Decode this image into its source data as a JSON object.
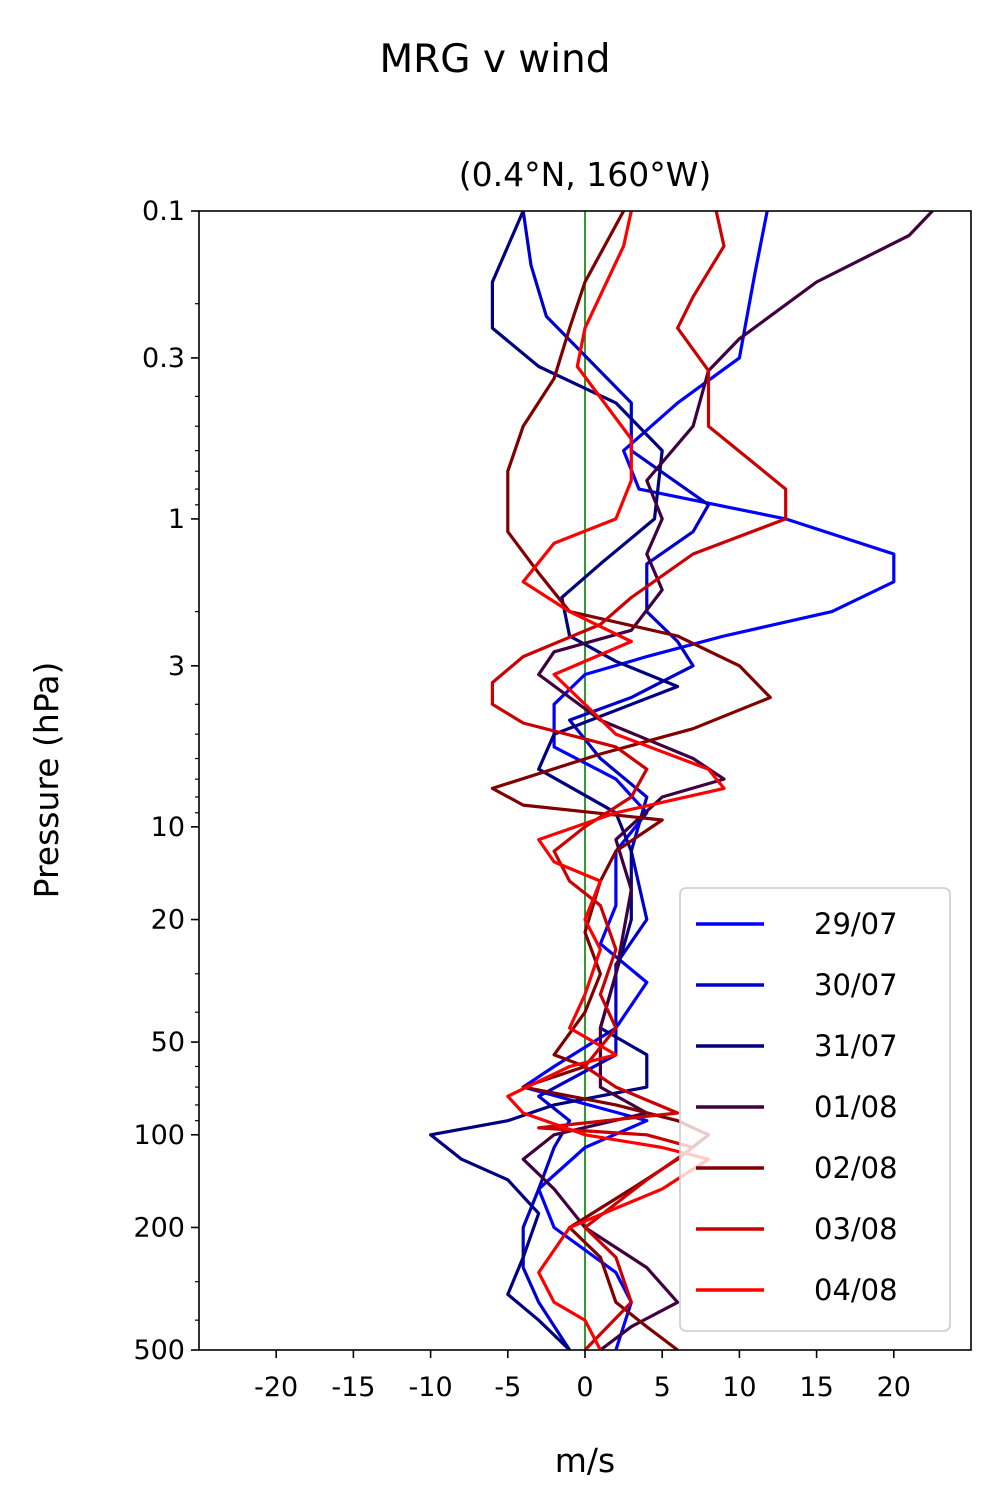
{
  "chart_data": {
    "type": "line",
    "title": "MRG v wind",
    "subtitle": "(0.4°N, 160°W)",
    "xlabel": "m/s",
    "ylabel": "Pressure (hPa)",
    "xlim": [
      -25,
      25
    ],
    "ylim": [
      500,
      0.1
    ],
    "yscale": "log",
    "xticks": [
      -20,
      -15,
      -10,
      -5,
      0,
      5,
      10,
      15,
      20
    ],
    "xtick_labels": [
      "-20",
      "-15",
      "-10",
      "-5",
      "0",
      "5",
      "10",
      "15",
      "20"
    ],
    "yticks": [
      0.1,
      0.3,
      1,
      3,
      10,
      20,
      50,
      100,
      200,
      500
    ],
    "ytick_labels": [
      "0.1",
      "0.3",
      "1",
      "3",
      "10",
      "20",
      "50",
      "100",
      "200",
      "500"
    ],
    "reference_line": {
      "x": 0,
      "color": "#008000"
    },
    "legend_position": "lower-right",
    "series": [
      {
        "name": "29/07",
        "color": "#0000ff",
        "points": [
          [
            11.8,
            0.1
          ],
          [
            11,
            0.16
          ],
          [
            10,
            0.3
          ],
          [
            6,
            0.42
          ],
          [
            2.5,
            0.6
          ],
          [
            3.5,
            0.8
          ],
          [
            13,
            1.0
          ],
          [
            20,
            1.3
          ],
          [
            20,
            1.6
          ],
          [
            16,
            2.0
          ],
          [
            9,
            2.4
          ],
          [
            4,
            2.8
          ],
          [
            0,
            3.2
          ],
          [
            -2,
            4.0
          ],
          [
            -2,
            5.5
          ],
          [
            2,
            7
          ],
          [
            4,
            9
          ],
          [
            2,
            12
          ],
          [
            2,
            18
          ],
          [
            1,
            24
          ],
          [
            4,
            32
          ],
          [
            2,
            45
          ],
          [
            -2,
            60
          ],
          [
            -4,
            70
          ],
          [
            4,
            90
          ],
          [
            0,
            110
          ],
          [
            -3,
            150
          ],
          [
            -2,
            200
          ],
          [
            2,
            280
          ],
          [
            3,
            350
          ],
          [
            2,
            500
          ]
        ]
      },
      {
        "name": "30/07",
        "color": "#0000cc",
        "points": [
          [
            -4,
            0.1
          ],
          [
            -3.5,
            0.15
          ],
          [
            -2.5,
            0.22
          ],
          [
            3,
            0.42
          ],
          [
            3,
            0.6
          ],
          [
            8,
            0.9
          ],
          [
            7,
            1.1
          ],
          [
            4,
            1.4
          ],
          [
            4,
            2.0
          ],
          [
            6,
            2.5
          ],
          [
            7,
            3.0
          ],
          [
            3,
            3.8
          ],
          [
            -1,
            4.5
          ],
          [
            1,
            6
          ],
          [
            4,
            8
          ],
          [
            3,
            12
          ],
          [
            4,
            20
          ],
          [
            2,
            28
          ],
          [
            2,
            40
          ],
          [
            2,
            55
          ],
          [
            -3,
            75
          ],
          [
            -1,
            90
          ],
          [
            -2,
            110
          ],
          [
            -3,
            150
          ],
          [
            -4,
            200
          ],
          [
            -4,
            270
          ],
          [
            -3,
            350
          ],
          [
            -1,
            500
          ]
        ]
      },
      {
        "name": "31/07",
        "color": "#000080",
        "points": [
          [
            -4,
            0.1
          ],
          [
            -6,
            0.17
          ],
          [
            -6,
            0.24
          ],
          [
            -3,
            0.32
          ],
          [
            2,
            0.42
          ],
          [
            5,
            0.6
          ],
          [
            4.5,
            1.0
          ],
          [
            1,
            1.4
          ],
          [
            -1.5,
            1.8
          ],
          [
            -1,
            2.4
          ],
          [
            2,
            2.9
          ],
          [
            6,
            3.5
          ],
          [
            -2,
            5
          ],
          [
            -3,
            6.5
          ],
          [
            2,
            9
          ],
          [
            3,
            12
          ],
          [
            3,
            20
          ],
          [
            2,
            30
          ],
          [
            1,
            45
          ],
          [
            4,
            55
          ],
          [
            4,
            70
          ],
          [
            -2,
            80
          ],
          [
            -5,
            90
          ],
          [
            -10,
            100
          ],
          [
            -8,
            120
          ],
          [
            -5,
            140
          ],
          [
            -3,
            180
          ],
          [
            -4,
            250
          ],
          [
            -5,
            330
          ],
          [
            -3,
            400
          ],
          [
            -1,
            500
          ]
        ]
      },
      {
        "name": "01/08",
        "color": "#400040",
        "points": [
          [
            22.5,
            0.1
          ],
          [
            21,
            0.12
          ],
          [
            15,
            0.17
          ],
          [
            10,
            0.26
          ],
          [
            8,
            0.33
          ],
          [
            7,
            0.5
          ],
          [
            4,
            0.75
          ],
          [
            5,
            1.0
          ],
          [
            4,
            1.3
          ],
          [
            5,
            1.7
          ],
          [
            3,
            2.3
          ],
          [
            -2,
            2.7
          ],
          [
            -3,
            3.2
          ],
          [
            1,
            4.5
          ],
          [
            7,
            6
          ],
          [
            9,
            7
          ],
          [
            5,
            8
          ],
          [
            2,
            11
          ],
          [
            3,
            16
          ],
          [
            2,
            30
          ],
          [
            1,
            45
          ],
          [
            1,
            70
          ],
          [
            4,
            85
          ],
          [
            -2,
            100
          ],
          [
            -4,
            120
          ],
          [
            -2,
            150
          ],
          [
            0,
            200
          ],
          [
            4,
            270
          ],
          [
            6,
            350
          ],
          [
            3,
            420
          ],
          [
            1,
            500
          ]
        ]
      },
      {
        "name": "02/08",
        "color": "#800000",
        "points": [
          [
            2.5,
            0.1
          ],
          [
            0,
            0.17
          ],
          [
            -1,
            0.24
          ],
          [
            -2,
            0.35
          ],
          [
            -4,
            0.5
          ],
          [
            -5,
            0.7
          ],
          [
            -5,
            1.1
          ],
          [
            -3,
            1.5
          ],
          [
            -1,
            2.0
          ],
          [
            6,
            2.4
          ],
          [
            10,
            3.0
          ],
          [
            12,
            3.8
          ],
          [
            7,
            4.8
          ],
          [
            1,
            5.8
          ],
          [
            -6,
            7.5
          ],
          [
            -4,
            8.5
          ],
          [
            5,
            9.5
          ],
          [
            2,
            12
          ],
          [
            1,
            15
          ],
          [
            0,
            22
          ],
          [
            1,
            30
          ],
          [
            0,
            40
          ],
          [
            -2,
            55
          ],
          [
            0,
            60
          ],
          [
            -4,
            70
          ],
          [
            2,
            80
          ],
          [
            6,
            90
          ],
          [
            8,
            100
          ],
          [
            6,
            120
          ],
          [
            3,
            150
          ],
          [
            -1,
            200
          ],
          [
            1,
            250
          ],
          [
            2,
            350
          ],
          [
            4,
            420
          ],
          [
            6,
            500
          ]
        ]
      },
      {
        "name": "03/08",
        "color": "#cc0000",
        "points": [
          [
            8.5,
            0.1
          ],
          [
            9,
            0.13
          ],
          [
            7,
            0.19
          ],
          [
            6,
            0.24
          ],
          [
            8,
            0.33
          ],
          [
            8,
            0.5
          ],
          [
            13,
            0.8
          ],
          [
            13,
            1.0
          ],
          [
            7,
            1.3
          ],
          [
            3,
            1.8
          ],
          [
            1,
            2.2
          ],
          [
            -4,
            2.8
          ],
          [
            -6,
            3.4
          ],
          [
            -6,
            4.0
          ],
          [
            -4,
            4.6
          ],
          [
            2,
            5.5
          ],
          [
            4,
            6.5
          ],
          [
            3,
            8
          ],
          [
            0,
            10
          ],
          [
            -2,
            12
          ],
          [
            -1,
            15
          ],
          [
            1,
            18
          ],
          [
            2,
            25
          ],
          [
            1,
            35
          ],
          [
            2,
            45
          ],
          [
            0,
            60
          ],
          [
            2,
            70
          ],
          [
            6,
            85
          ],
          [
            -3,
            95
          ],
          [
            4,
            100
          ],
          [
            7,
            110
          ],
          [
            4,
            140
          ],
          [
            0,
            200
          ],
          [
            2,
            250
          ],
          [
            3,
            350
          ],
          [
            0,
            500
          ]
        ]
      },
      {
        "name": "04/08",
        "color": "#ff0000",
        "points": [
          [
            3,
            0.1
          ],
          [
            2.5,
            0.13
          ],
          [
            0,
            0.24
          ],
          [
            -0.5,
            0.32
          ],
          [
            3,
            0.55
          ],
          [
            3,
            0.75
          ],
          [
            2,
            1.0
          ],
          [
            -2,
            1.2
          ],
          [
            -4,
            1.6
          ],
          [
            -1,
            2.0
          ],
          [
            3,
            2.5
          ],
          [
            -2,
            3.2
          ],
          [
            2,
            5
          ],
          [
            8,
            6.5
          ],
          [
            9,
            7.5
          ],
          [
            2,
            9
          ],
          [
            -3,
            11
          ],
          [
            -2,
            13
          ],
          [
            1,
            15
          ],
          [
            0,
            20
          ],
          [
            1,
            25
          ],
          [
            0,
            35
          ],
          [
            -1,
            45
          ],
          [
            2,
            55
          ],
          [
            -1,
            60
          ],
          [
            -5,
            75
          ],
          [
            -4,
            85
          ],
          [
            0,
            100
          ],
          [
            5,
            110
          ],
          [
            8,
            120
          ],
          [
            5,
            150
          ],
          [
            -1,
            200
          ],
          [
            -3,
            280
          ],
          [
            -2,
            350
          ],
          [
            0,
            400
          ],
          [
            1,
            500
          ]
        ]
      }
    ]
  }
}
